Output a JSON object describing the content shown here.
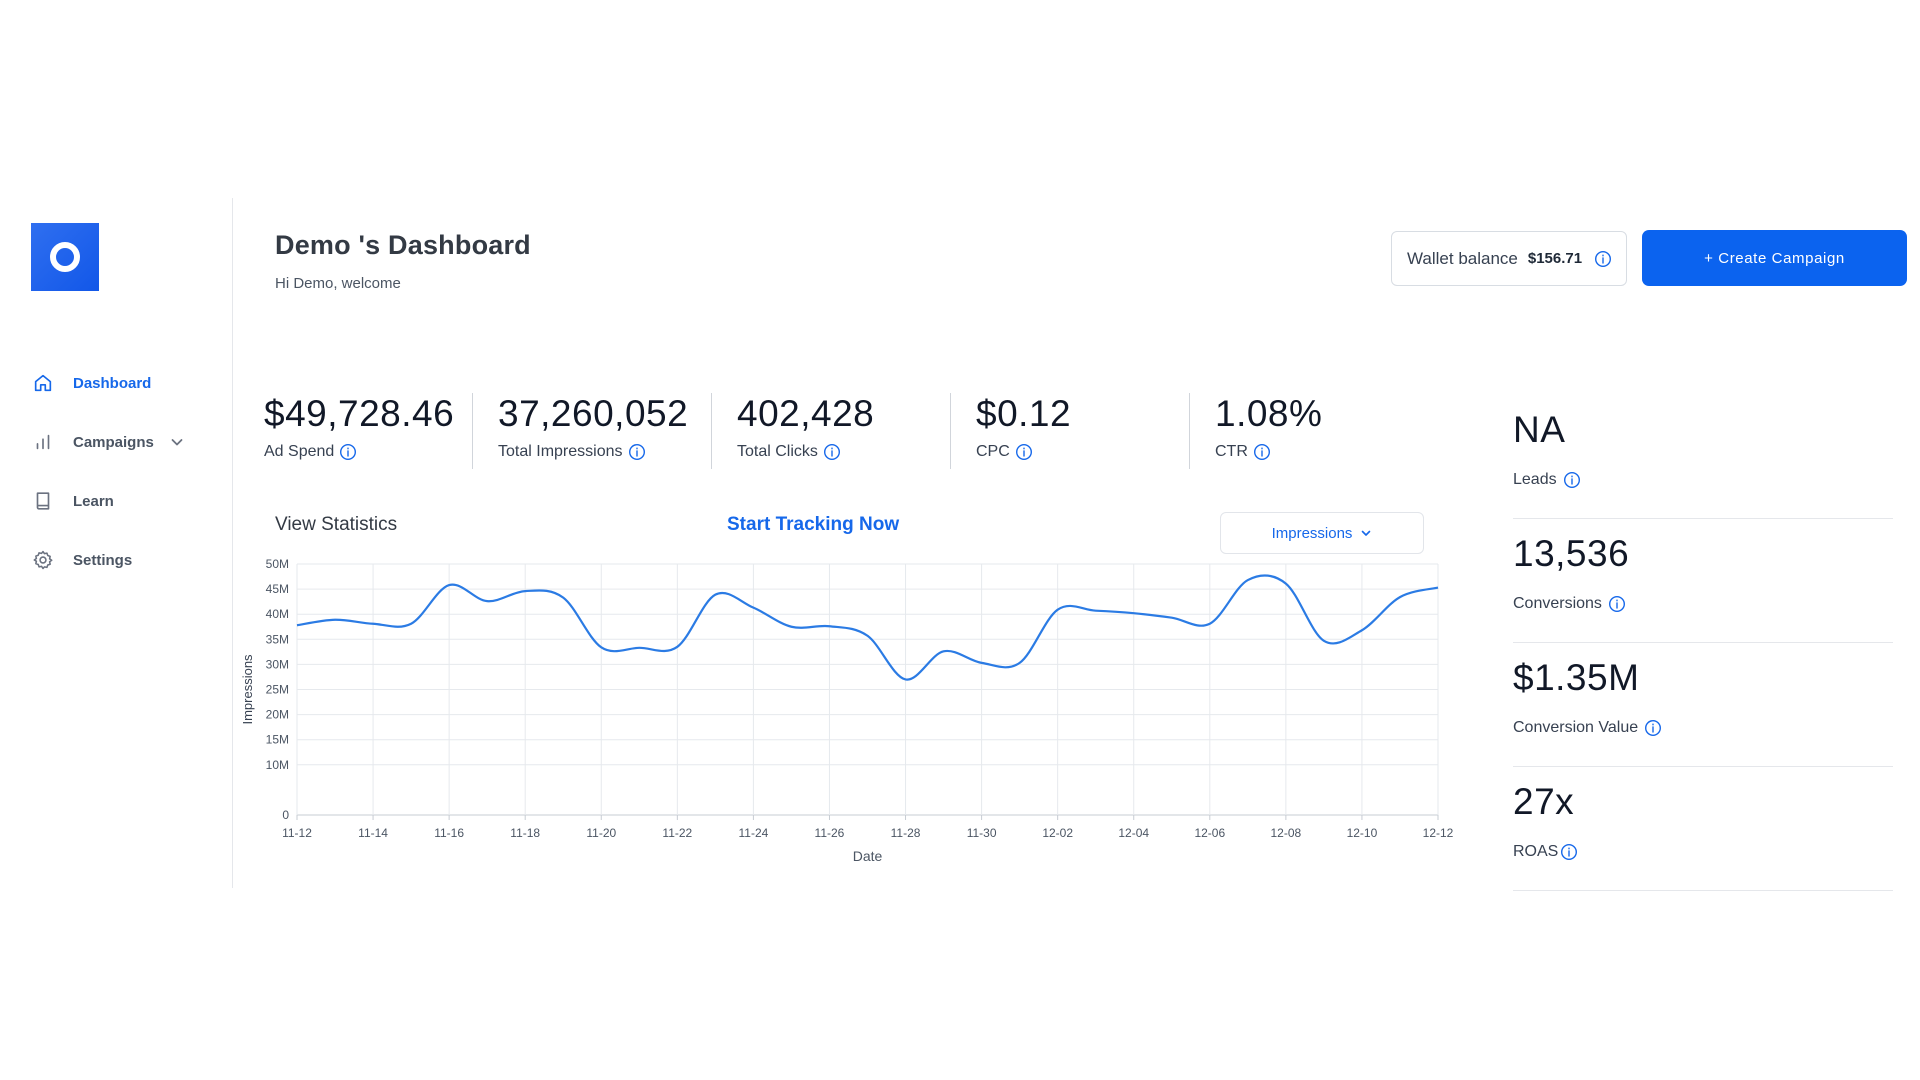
{
  "dashboard": {
    "title": "Demo 's Dashboard",
    "welcome": "Hi Demo, welcome"
  },
  "sidebar": {
    "items": [
      {
        "label": "Dashboard",
        "icon": "home-icon",
        "active": true
      },
      {
        "label": "Campaigns",
        "icon": "bar-chart-icon",
        "active": false
      },
      {
        "label": "Learn",
        "icon": "book-icon",
        "active": false
      },
      {
        "label": "Settings",
        "icon": "gear-icon",
        "active": false
      }
    ]
  },
  "wallet": {
    "label": "Wallet balance",
    "value": "$156.71"
  },
  "create_button": "+ Create Campaign",
  "metrics": [
    {
      "value": "$49,728.46",
      "label": "Ad Spend"
    },
    {
      "value": "37,260,052",
      "label": "Total Impressions"
    },
    {
      "value": "402,428",
      "label": "Total Clicks"
    },
    {
      "value": "$0.12",
      "label": "CPC"
    },
    {
      "value": "1.08%",
      "label": "CTR"
    }
  ],
  "side_metrics": [
    {
      "value": "NA",
      "label": "Leads"
    },
    {
      "value": "13,536",
      "label": "Conversions"
    },
    {
      "value": "$1.35M",
      "label": "Conversion Value"
    },
    {
      "value": "27x",
      "label": "ROAS"
    }
  ],
  "stats": {
    "title": "View Statistics",
    "tracking_link": "Start Tracking Now",
    "dropdown_value": "Impressions"
  },
  "colors": {
    "accent": "#1668ea",
    "button": "#0b63ef",
    "line": "#2b7be4"
  },
  "chart_data": {
    "type": "line",
    "xlabel": "Date",
    "ylabel": "Impressions",
    "ylim": [
      0,
      50000000
    ],
    "yticks": [
      "0",
      "10M",
      "15M",
      "20M",
      "25M",
      "30M",
      "35M",
      "40M",
      "45M",
      "50M"
    ],
    "ytick_values": [
      0,
      10000000,
      15000000,
      20000000,
      25000000,
      30000000,
      35000000,
      40000000,
      45000000,
      50000000
    ],
    "x_ticks": [
      "11-12",
      "11-14",
      "11-16",
      "11-18",
      "11-20",
      "11-22",
      "11-24",
      "11-26",
      "11-28",
      "11-30",
      "12-02",
      "12-04",
      "12-06",
      "12-08",
      "12-10",
      "12-12"
    ],
    "grid": true,
    "x": [
      "11-12",
      "11-13",
      "11-14",
      "11-15",
      "11-16",
      "11-17",
      "11-18",
      "11-19",
      "11-20",
      "11-21",
      "11-22",
      "11-23",
      "11-24",
      "11-25",
      "11-26",
      "11-27",
      "11-28",
      "11-29",
      "11-30",
      "12-01",
      "12-02",
      "12-03",
      "12-04",
      "12-05",
      "12-06",
      "12-07",
      "12-08",
      "12-09",
      "12-10",
      "12-11",
      "12-12"
    ],
    "series": [
      {
        "values": [
          37800000,
          38900000,
          38100000,
          38100000,
          45800000,
          42600000,
          44600000,
          43300000,
          33400000,
          33300000,
          33500000,
          43900000,
          41300000,
          37500000,
          37600000,
          35700000,
          27000000,
          32600000,
          30300000,
          30300000,
          40900000,
          40700000,
          40200000,
          39300000,
          38100000,
          46800000,
          46100000,
          34700000,
          36800000,
          43400000,
          45300000
        ]
      }
    ]
  }
}
